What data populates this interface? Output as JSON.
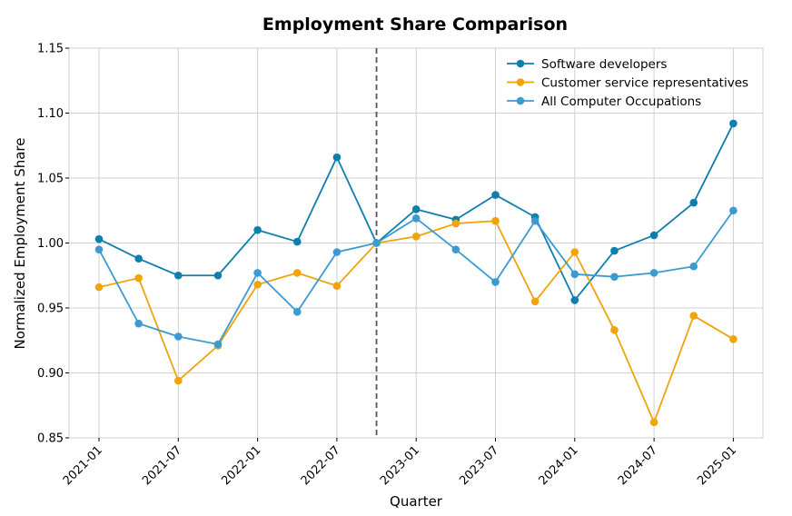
{
  "chart_data": {
    "type": "line",
    "title": "Employment Share Comparison",
    "xlabel": "Quarter",
    "ylabel": "Normalized Employment Share",
    "ylim": [
      0.85,
      1.15
    ],
    "yticks": [
      "0.85",
      "0.90",
      "0.95",
      "1.00",
      "1.05",
      "1.10",
      "1.15"
    ],
    "xticks": [
      "2021-01",
      "2021-07",
      "2022-01",
      "2022-07",
      "2023-01",
      "2023-07",
      "2024-01",
      "2024-07",
      "2025-01"
    ],
    "categories": [
      "2021-01",
      "2021-04",
      "2021-07",
      "2021-10",
      "2022-01",
      "2022-04",
      "2022-07",
      "2022-10",
      "2023-01",
      "2023-04",
      "2023-07",
      "2023-10",
      "2024-01",
      "2024-04",
      "2024-07",
      "2024-10",
      "2025-01"
    ],
    "reference_line": {
      "category": "2022-10",
      "style": "dashed"
    },
    "legend_position": "top-right",
    "grid": true,
    "series": [
      {
        "name": "Software developers",
        "color": "#0e7fad",
        "values": [
          1.003,
          0.988,
          0.975,
          0.975,
          1.01,
          1.001,
          1.066,
          1.0,
          1.026,
          1.018,
          1.037,
          1.02,
          0.956,
          0.994,
          1.006,
          1.031,
          1.092
        ]
      },
      {
        "name": "Customer service representatives",
        "color": "#f0a30a",
        "values": [
          0.966,
          0.973,
          0.894,
          0.921,
          0.968,
          0.977,
          0.967,
          1.0,
          1.005,
          1.015,
          1.017,
          0.955,
          0.993,
          0.933,
          0.862,
          0.944,
          0.926
        ]
      },
      {
        "name": "All Computer Occupations",
        "color": "#3b9bd1",
        "values": [
          0.995,
          0.938,
          0.928,
          0.922,
          0.977,
          0.947,
          0.993,
          1.0,
          1.019,
          0.995,
          0.97,
          1.017,
          0.976,
          0.974,
          0.977,
          0.982,
          1.025
        ]
      }
    ]
  }
}
